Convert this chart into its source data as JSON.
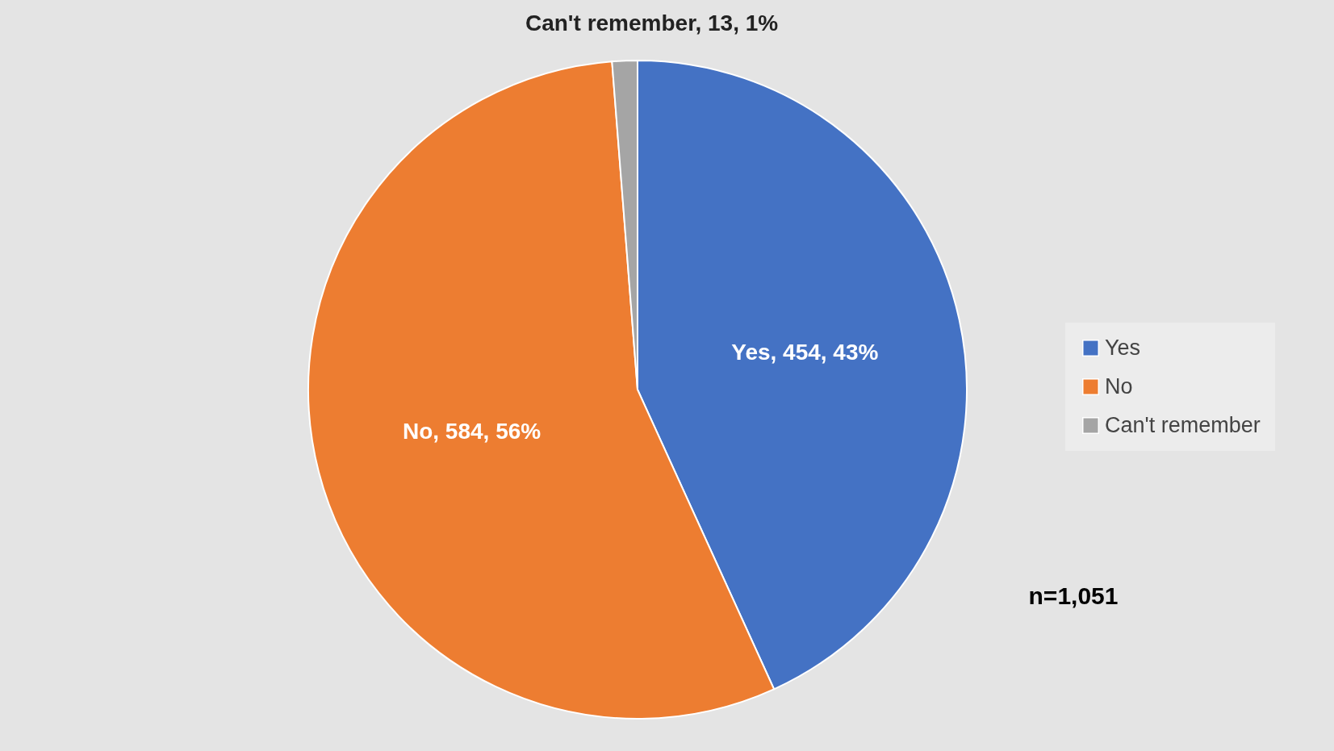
{
  "chart_data": {
    "type": "pie",
    "categories": [
      "Yes",
      "No",
      "Can't remember"
    ],
    "values": [
      454,
      584,
      13
    ],
    "colors": [
      "#4472c4",
      "#ed7d31",
      "#a5a5a5"
    ],
    "value_labels": [
      "Yes, 454, 43%",
      "No, 584, 56%",
      "Can't remember, 13, 1%"
    ],
    "legend": "right",
    "annotations": [
      "n=1,051"
    ]
  }
}
